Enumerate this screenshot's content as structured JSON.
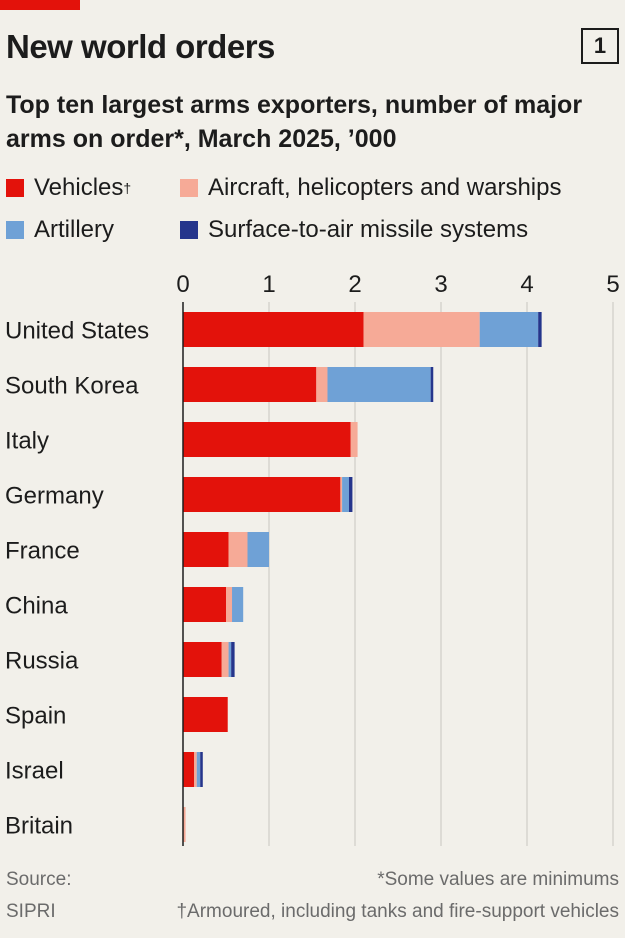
{
  "header": {
    "title": "New world orders",
    "badge": "1",
    "subtitle": "Top ten largest arms exporters, number of major arms on order*, March 2025, ’000"
  },
  "legend": [
    {
      "label": "Vehicles",
      "marker": "†",
      "color": "#e3120b"
    },
    {
      "label": "Aircraft, helicopters and warships",
      "marker": "",
      "color": "#f6aa97"
    },
    {
      "label": "Artillery",
      "marker": "",
      "color": "#6fa1d6"
    },
    {
      "label": "Surface-to-air missile systems",
      "marker": "",
      "color": "#25358c"
    }
  ],
  "footer": {
    "source_label": "Source:",
    "source_name": "SIPRI",
    "note_minimums": "*Some values are minimums",
    "note_dagger": "†Armoured, including tanks and fire-support vehicles"
  },
  "chart_data": {
    "type": "bar",
    "orientation": "horizontal",
    "stacked": true,
    "categories": [
      "United States",
      "South Korea",
      "Italy",
      "Germany",
      "France",
      "China",
      "Russia",
      "Spain",
      "Israel",
      "Britain"
    ],
    "series": [
      {
        "name": "Vehicles",
        "color": "#e3120b",
        "values": [
          2.1,
          1.55,
          1.95,
          1.83,
          0.53,
          0.5,
          0.45,
          0.52,
          0.13,
          0.0
        ]
      },
      {
        "name": "Aircraft, helicopters and warships",
        "color": "#f6aa97",
        "values": [
          1.35,
          0.13,
          0.08,
          0.02,
          0.22,
          0.07,
          0.08,
          0.0,
          0.03,
          0.03
        ]
      },
      {
        "name": "Artillery",
        "color": "#6fa1d6",
        "values": [
          0.68,
          1.2,
          0.0,
          0.08,
          0.25,
          0.13,
          0.03,
          0.0,
          0.04,
          0.0
        ]
      },
      {
        "name": "Surface-to-air missile systems",
        "color": "#25358c",
        "values": [
          0.04,
          0.03,
          0.0,
          0.04,
          0.0,
          0.0,
          0.04,
          0.0,
          0.03,
          0.0
        ]
      }
    ],
    "xlim": [
      0,
      5
    ],
    "xticks": [
      "0",
      "1",
      "2",
      "3",
      "4",
      "5"
    ],
    "grid": true,
    "legend_position": "top"
  }
}
